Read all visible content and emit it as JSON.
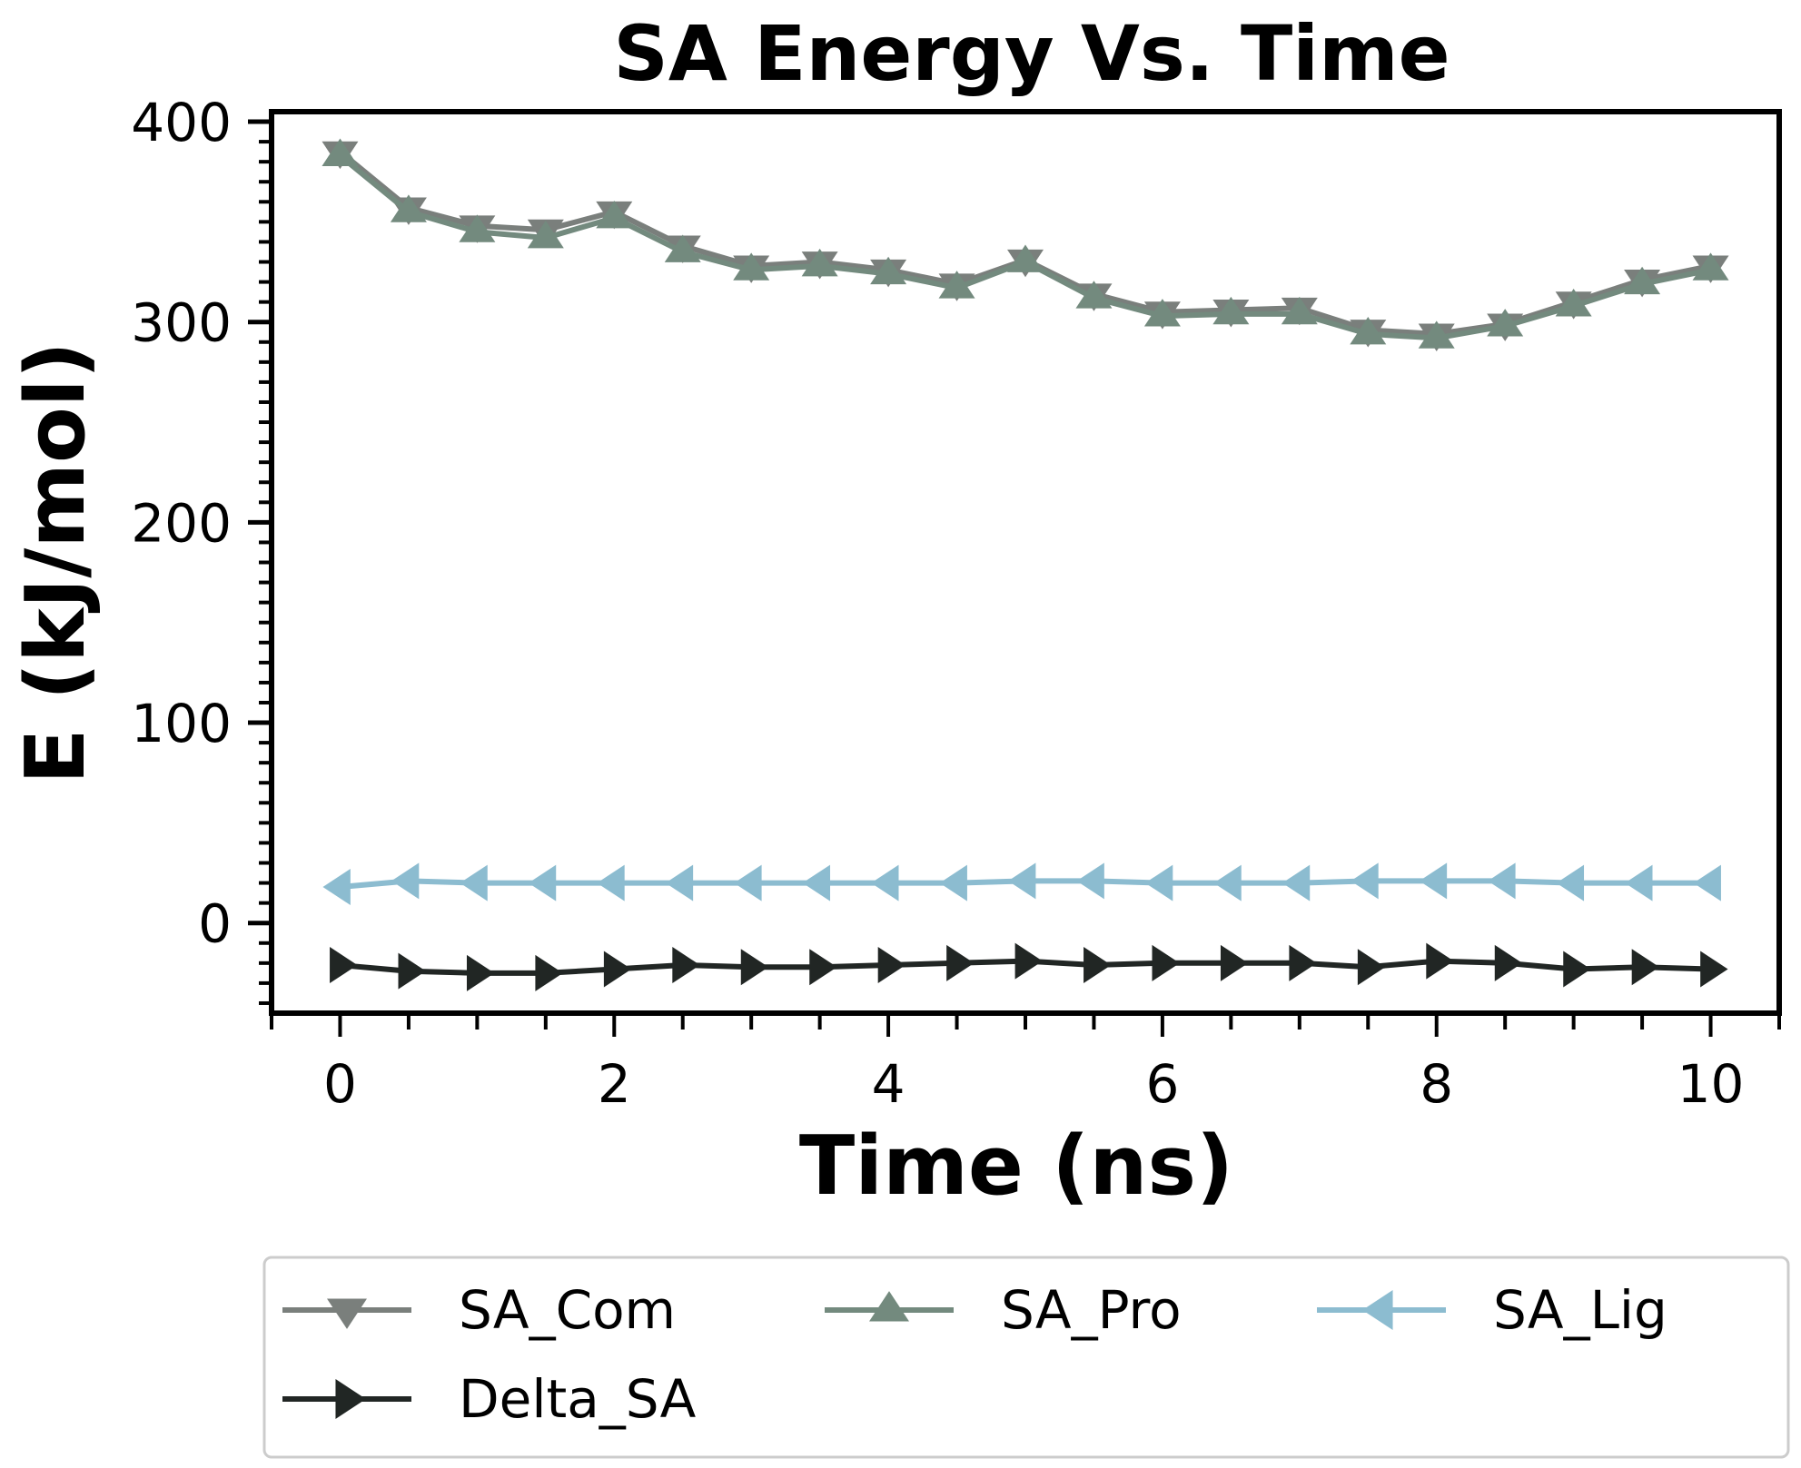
{
  "chart_data": {
    "type": "line",
    "title": "SA Energy Vs. Time",
    "xlabel": "Time (ns)",
    "ylabel": "E (kJ/mol)",
    "xlim": [
      -0.5,
      10.5
    ],
    "ylim": [
      -45,
      405
    ],
    "xticks": [
      "0",
      "2",
      "4",
      "6",
      "8",
      "10"
    ],
    "yticks": [
      "0",
      "100",
      "200",
      "300",
      "400"
    ],
    "x": [
      0,
      0.5,
      1,
      1.5,
      2,
      2.5,
      3,
      3.5,
      4,
      4.5,
      5,
      5.5,
      6,
      6.5,
      7,
      7.5,
      8,
      8.5,
      9,
      9.5,
      10
    ],
    "series": [
      {
        "name": "SA_Com",
        "color": "#7a7f7c",
        "marker": "triangle-down",
        "values": [
          385,
          357,
          348,
          346,
          355,
          338,
          328,
          330,
          326,
          319,
          331,
          314,
          305,
          306,
          307,
          296,
          294,
          299,
          310,
          321,
          328
        ]
      },
      {
        "name": "SA_Pro",
        "color": "#738a7e",
        "marker": "triangle-up",
        "values": [
          383,
          355,
          345,
          342,
          352,
          335,
          326,
          328,
          324,
          317,
          330,
          312,
          303,
          304,
          304,
          294,
          292,
          298,
          308,
          319,
          326
        ]
      },
      {
        "name": "SA_Lig",
        "color": "#8cbcd0",
        "marker": "triangle-left",
        "values": [
          18,
          21,
          20,
          20,
          20,
          20,
          20,
          20,
          20,
          20,
          21,
          21,
          20,
          20,
          20,
          21,
          21,
          21,
          20,
          20,
          20
        ]
      },
      {
        "name": "Delta_SA",
        "color": "#212624",
        "marker": "triangle-right",
        "values": [
          -21,
          -24,
          -25,
          -25,
          -23,
          -21,
          -22,
          -22,
          -21,
          -20,
          -19,
          -21,
          -20,
          -20,
          -20,
          -22,
          -19,
          -20,
          -23,
          -22,
          -23
        ]
      }
    ],
    "grid": false,
    "legend_position": "bottom"
  }
}
